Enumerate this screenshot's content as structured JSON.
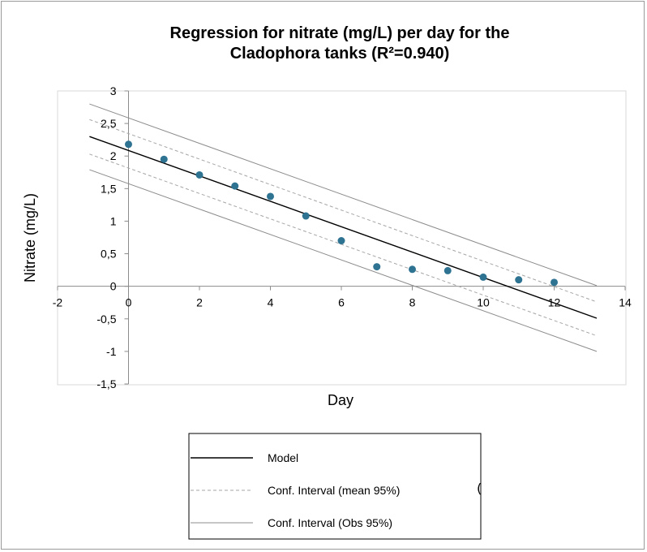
{
  "chart_data": {
    "type": "scatter",
    "title_lines": [
      "Regression for nitrate (mg/L) per day for the",
      "Cladophora tanks (R²=0.940)"
    ],
    "xlabel": "Day",
    "ylabel": "Nitrate (mg/L)",
    "xlim": [
      -2,
      14
    ],
    "ylim": [
      -1.5,
      3
    ],
    "x_ticks": [
      -2,
      0,
      2,
      4,
      6,
      8,
      10,
      12,
      14
    ],
    "x_tick_labels": [
      "-2",
      "0",
      "2",
      "4",
      "6",
      "8",
      "10",
      "12",
      "14"
    ],
    "y_ticks": [
      -1.5,
      -1,
      -0.5,
      0,
      0.5,
      1,
      1.5,
      2,
      2.5,
      3
    ],
    "y_tick_labels": [
      "-1,5",
      "-1",
      "-0,5",
      "0",
      "0,5",
      "1",
      "1,5",
      "2",
      "2,5",
      "3"
    ],
    "grid": false,
    "marker_color": "#2e7391",
    "points": {
      "x": [
        0,
        1,
        2,
        3,
        4,
        5,
        6,
        7,
        8,
        9,
        10,
        11,
        12
      ],
      "y": [
        2.18,
        1.95,
        1.71,
        1.54,
        1.38,
        1.08,
        0.7,
        0.3,
        0.26,
        0.24,
        0.14,
        0.1,
        0.06
      ]
    },
    "lines": [
      {
        "name": "Model",
        "style": "solid",
        "color": "#000000",
        "x": [
          -1.1,
          13.2
        ],
        "y": [
          2.3,
          -0.49
        ]
      },
      {
        "name": "Conf. Interval (mean 95%)",
        "style": "dashed",
        "color": "#a6a6a6",
        "x": [
          -1.1,
          13.2
        ],
        "y": [
          2.56,
          -0.24
        ]
      },
      {
        "name": "",
        "style": "dashed",
        "color": "#a6a6a6",
        "x": [
          -1.1,
          13.2
        ],
        "y": [
          2.03,
          -0.76
        ]
      },
      {
        "name": "Conf. Interval (Obs 95%)",
        "style": "solid",
        "color": "#8c8c8c",
        "x": [
          -1.1,
          13.2
        ],
        "y": [
          2.8,
          0.01
        ]
      },
      {
        "name": "",
        "style": "solid",
        "color": "#8c8c8c",
        "x": [
          -1.1,
          13.2
        ],
        "y": [
          1.79,
          -1.0
        ]
      }
    ],
    "legend": {
      "placement": "bottom",
      "entries": [
        {
          "label": "Model",
          "style": "solid",
          "color": "#000000"
        },
        {
          "label": "Conf. Interval (mean 95%)",
          "style": "dashed",
          "color": "#a6a6a6"
        },
        {
          "label": "Conf. Interval (Obs 95%)",
          "style": "solid",
          "color": "#8c8c8c"
        }
      ]
    }
  }
}
